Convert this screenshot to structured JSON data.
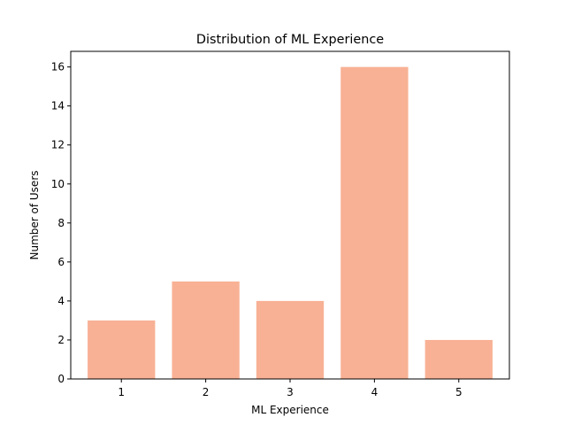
{
  "chart_data": {
    "type": "bar",
    "title": "Distribution of ML Experience",
    "xlabel": "ML Experience",
    "ylabel": "Number of Users",
    "categories": [
      "1",
      "2",
      "3",
      "4",
      "5"
    ],
    "values": [
      3,
      5,
      4,
      16,
      2
    ],
    "ylim": [
      0,
      16.8
    ],
    "yticks": [
      0,
      2,
      4,
      6,
      8,
      10,
      12,
      14,
      16
    ],
    "grid": false,
    "bar_color": "#f8b195"
  }
}
